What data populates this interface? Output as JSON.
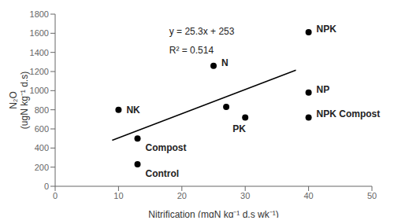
{
  "chart_data": {
    "type": "scatter",
    "x_label": "Nitrification (mgN kg⁻¹ d.s wk⁻¹)",
    "y_label": "N₂O\n(ugN kg⁻¹ d.s)",
    "annotations": [
      "y = 25.3x + 253",
      "R² = 0.514"
    ],
    "series": [
      {
        "type": "scatter",
        "color": "black",
        "x": [
          10,
          13,
          13,
          25,
          27,
          30,
          40,
          40,
          40
        ],
        "values": [
          800,
          500,
          230,
          1260,
          830,
          720,
          1610,
          980,
          720
        ],
        "labels": [
          "NK",
          "Compost",
          "Control",
          "N",
          null,
          "PK",
          "NPK",
          "NP",
          "NPK Compost"
        ]
      },
      {
        "type": "line",
        "color": "black",
        "x": [
          9,
          38
        ],
        "values": [
          480.7,
          1214.4
        ]
      }
    ],
    "xlim": [
      0,
      50
    ],
    "ylim": [
      0,
      1800
    ],
    "xticks": [
      0,
      10,
      20,
      30,
      40,
      50
    ],
    "yticks": [
      0,
      200,
      400,
      600,
      800,
      1000,
      1200,
      1400,
      1600,
      1800
    ]
  }
}
